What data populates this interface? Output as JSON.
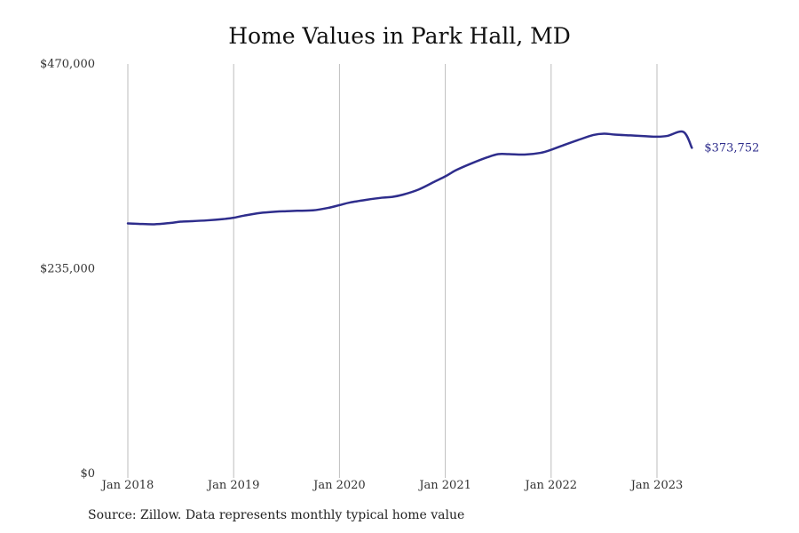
{
  "chart_data": {
    "type": "line",
    "title": "Home Values in Park Hall, MD",
    "xlabel": "",
    "ylabel": "",
    "ylim": [
      0,
      470000
    ],
    "y_ticks": [
      {
        "value": 0,
        "label": "$0"
      },
      {
        "value": 235000,
        "label": "$235,000"
      },
      {
        "value": 470000,
        "label": "$470,000"
      }
    ],
    "x_ticks": [
      {
        "value": 2018.0,
        "label": "Jan 2018"
      },
      {
        "value": 2019.0,
        "label": "Jan 2019"
      },
      {
        "value": 2020.0,
        "label": "Jan 2020"
      },
      {
        "value": 2021.0,
        "label": "Jan 2021"
      },
      {
        "value": 2022.0,
        "label": "Jan 2022"
      },
      {
        "value": 2023.0,
        "label": "Jan 2023"
      }
    ],
    "grid": {
      "vertical": true,
      "horizontal": false
    },
    "series": [
      {
        "color": "#2e2d8c",
        "end_label": "$373,752",
        "x": [
          2018.0,
          2018.1,
          2018.25,
          2018.4,
          2018.5,
          2018.6,
          2018.75,
          2018.9,
          2019.0,
          2019.1,
          2019.25,
          2019.4,
          2019.5,
          2019.6,
          2019.75,
          2019.9,
          2020.0,
          2020.1,
          2020.25,
          2020.4,
          2020.5,
          2020.6,
          2020.75,
          2020.9,
          2021.0,
          2021.1,
          2021.25,
          2021.4,
          2021.5,
          2021.6,
          2021.75,
          2021.9,
          2022.0,
          2022.1,
          2022.25,
          2022.4,
          2022.5,
          2022.6,
          2022.75,
          2022.9,
          2023.0,
          2023.1,
          2023.25,
          2023.33
        ],
        "y": [
          287000,
          286500,
          286000,
          287500,
          289000,
          289500,
          290500,
          292000,
          293500,
          296000,
          299000,
          300500,
          301000,
          301500,
          302000,
          305000,
          308000,
          311000,
          314000,
          316500,
          317500,
          320000,
          326000,
          335000,
          341000,
          348000,
          356000,
          363000,
          366500,
          366500,
          366000,
          368000,
          371500,
          376000,
          382500,
          388500,
          390000,
          389000,
          388000,
          387000,
          386500,
          387500,
          392000,
          373752
        ]
      }
    ],
    "source": "Source: Zillow. Data represents monthly typical home value"
  }
}
